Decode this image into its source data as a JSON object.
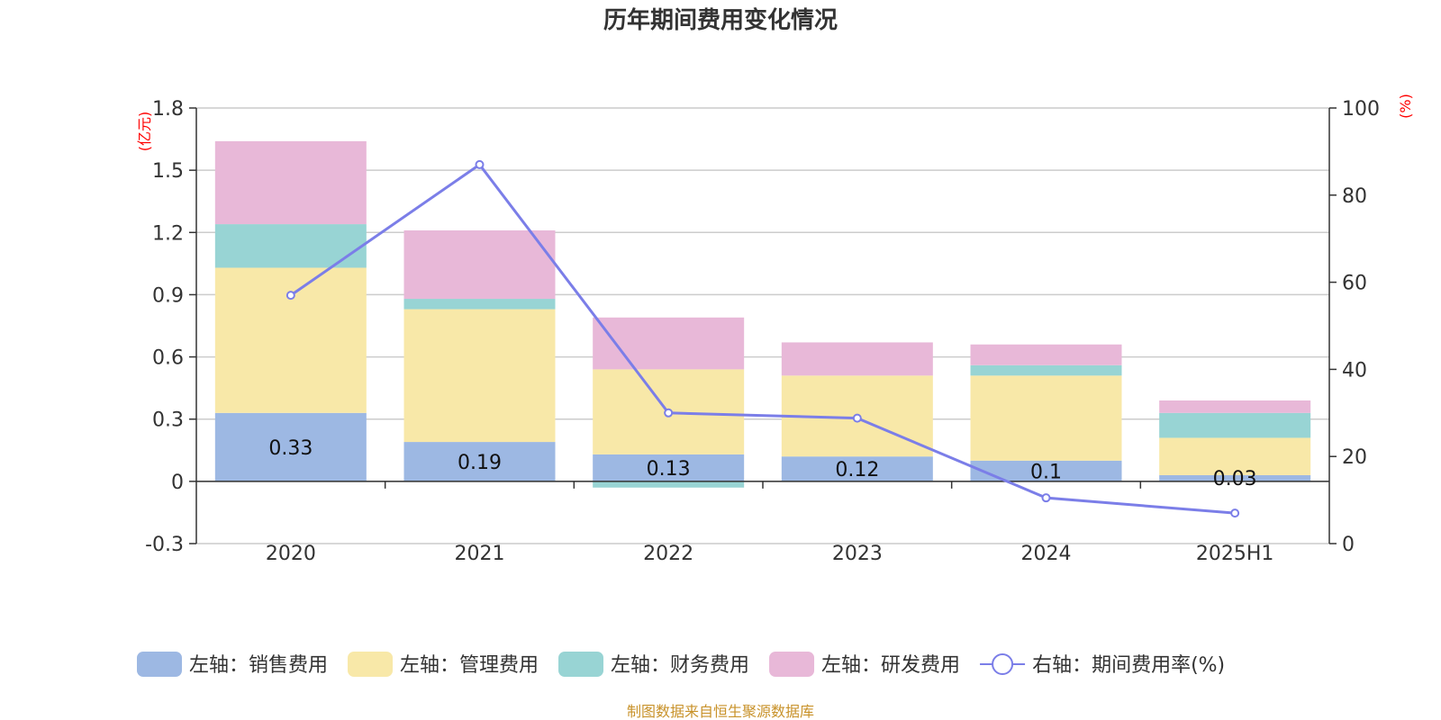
{
  "chart_data": {
    "type": "bar",
    "title": "历年期间费用变化情况",
    "categories": [
      "2020",
      "2021",
      "2022",
      "2023",
      "2024",
      "2025H1"
    ],
    "left_axis": {
      "unit": "(亿元)",
      "ylim": [
        -0.3,
        1.8
      ],
      "ticks": [
        "1.8",
        "1.5",
        "1.2",
        "0.9",
        "0.6",
        "0.3",
        "0",
        "-0.3"
      ]
    },
    "right_axis": {
      "unit": "(%)",
      "ylim": [
        0,
        100
      ],
      "ticks": [
        "100",
        "80",
        "60",
        "40",
        "20",
        "0"
      ]
    },
    "series": [
      {
        "name": "左轴：销售费用",
        "color": "#9db8e3",
        "values": [
          0.33,
          0.19,
          0.13,
          0.12,
          0.1,
          0.03
        ],
        "labels": [
          "0.33",
          "0.19",
          "0.13",
          "0.12",
          "0.1",
          "0.03"
        ]
      },
      {
        "name": "左轴：管理费用",
        "color": "#f8e8a8",
        "values": [
          0.7,
          0.64,
          0.41,
          0.39,
          0.41,
          0.18
        ]
      },
      {
        "name": "左轴：财务费用",
        "color": "#98d4d4",
        "values": [
          0.21,
          0.05,
          -0.03,
          0.0,
          0.05,
          0.12
        ]
      },
      {
        "name": "左轴：研发费用",
        "color": "#e8b8d8",
        "values": [
          0.4,
          0.33,
          0.25,
          0.16,
          0.1,
          0.06
        ]
      }
    ],
    "line_series": {
      "name": "右轴：期间费用率(%)",
      "color": "#7b7ee8",
      "values": [
        57,
        87,
        30,
        28.8,
        10.5,
        7
      ]
    },
    "grid": true,
    "legend_position": "bottom"
  },
  "source_text": "制图数据来自恒生聚源数据库"
}
